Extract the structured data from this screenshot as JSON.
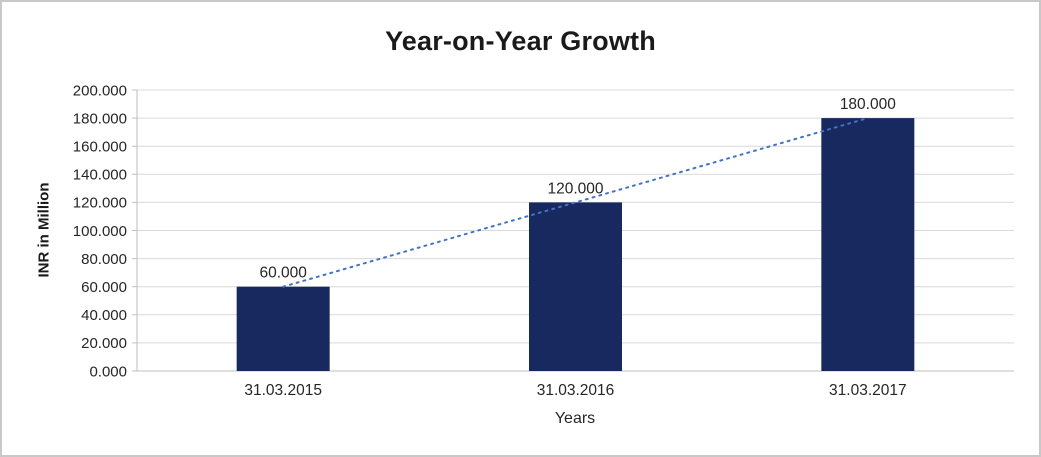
{
  "chart_data": {
    "type": "bar",
    "title": "Year-on-Year Growth",
    "xlabel": "Years",
    "ylabel": "INR in Million",
    "categories": [
      "31.03.2015",
      "31.03.2016",
      "31.03.2017"
    ],
    "values": [
      60000,
      120000,
      180000
    ],
    "value_labels": [
      "60.000",
      "120.000",
      "180.000"
    ],
    "ylim": [
      0,
      200000
    ],
    "ytick_step": 20000,
    "ytick_labels": [
      "0.000",
      "20.000",
      "40.000",
      "60.000",
      "80.000",
      "100.000",
      "120.000",
      "140.000",
      "160.000",
      "180.000",
      "200.000"
    ],
    "grid": true,
    "legend": false,
    "trendline": {
      "style": "dotted",
      "from_value": 60000,
      "to_value": 180000
    },
    "colors": {
      "bar": "#17295E",
      "trend": "#4472C4",
      "grid": "#D9D9D9",
      "axis": "#BFBFBF",
      "text": "#262626"
    }
  }
}
